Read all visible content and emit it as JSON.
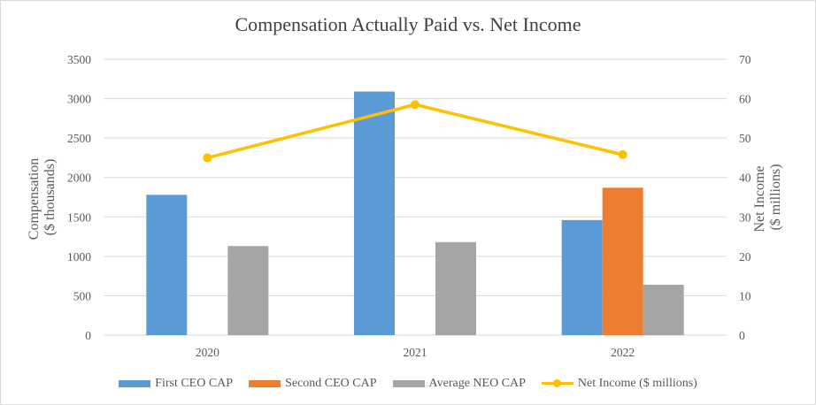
{
  "chart_data": {
    "type": "bar",
    "title": "Compensation Actually Paid vs. Net Income",
    "categories": [
      "2020",
      "2021",
      "2022"
    ],
    "ylabel_left": [
      "Compensation",
      "($ thousands)"
    ],
    "ylabel_right": [
      "Net Income",
      "($ millions)"
    ],
    "ylim_left": [
      0,
      3500
    ],
    "ylim_right": [
      0,
      70
    ],
    "yticks_left": [
      "0",
      "500",
      "1000",
      "1500",
      "2000",
      "2500",
      "3000",
      "3500"
    ],
    "yticks_right": [
      "0",
      "10",
      "20",
      "30",
      "40",
      "50",
      "60",
      "70"
    ],
    "series": [
      {
        "name": "First CEO CAP",
        "type": "bar",
        "axis": "left",
        "color": "#5b9bd5",
        "values": [
          1780,
          3090,
          1460
        ]
      },
      {
        "name": "Second CEO CAP",
        "type": "bar",
        "axis": "left",
        "color": "#ed7d31",
        "values": [
          0,
          0,
          1870
        ]
      },
      {
        "name": "Average NEO CAP",
        "type": "bar",
        "axis": "left",
        "color": "#a5a5a5",
        "values": [
          1130,
          1180,
          640
        ]
      },
      {
        "name": "Net Income ($ millions)",
        "type": "line",
        "axis": "right",
        "color": "#ffc000",
        "values": [
          45,
          58.5,
          45.8
        ]
      }
    ],
    "grid": true,
    "legend_position": "bottom"
  }
}
